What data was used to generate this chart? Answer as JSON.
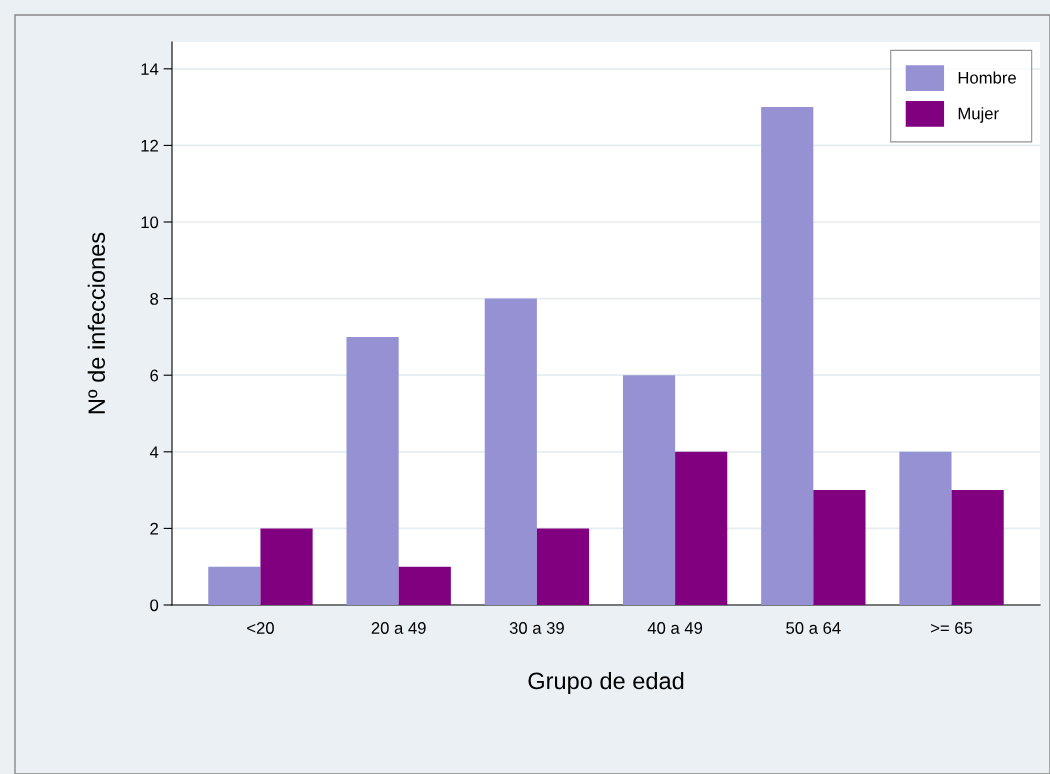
{
  "chart_data": {
    "type": "bar",
    "xlabel": "Grupo de edad",
    "ylabel": "Nº de infecciones",
    "categories": [
      "<20",
      "20 a 49",
      "30 a 39",
      "40 a 49",
      "50 a 64",
      ">= 65"
    ],
    "series": [
      {
        "name": "Hombre",
        "color": "#9591d3",
        "values": [
          1,
          7,
          8,
          6,
          13,
          4
        ]
      },
      {
        "name": "Mujer",
        "color": "#800080",
        "values": [
          2,
          1,
          2,
          4,
          3,
          3
        ]
      }
    ],
    "ylim": [
      0,
      14.7
    ],
    "yticks": [
      0,
      2,
      4,
      6,
      8,
      10,
      12,
      14
    ],
    "grid": "y",
    "legend": "top right"
  }
}
